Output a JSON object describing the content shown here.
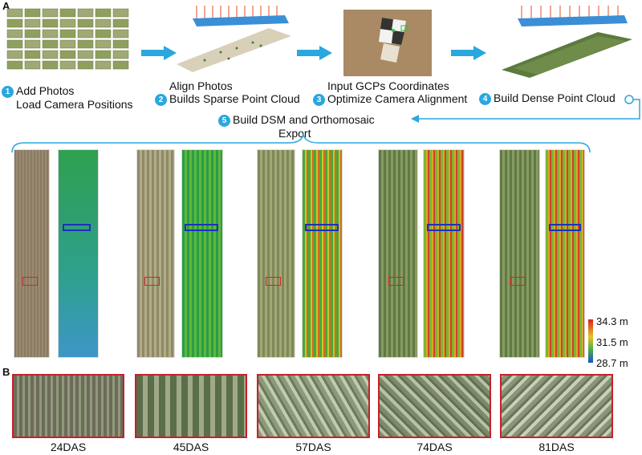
{
  "panels": {
    "a": "A",
    "b": "B"
  },
  "steps": [
    {
      "num": "1",
      "line1": "Add Photos",
      "line2": "Load Camera Positions"
    },
    {
      "num": "2",
      "line1": "Align Photos",
      "line2": "Builds Sparse Point Cloud"
    },
    {
      "num": "3",
      "line1": "Input GCPs Coordinates",
      "line2": "Optimize Camera Alignment"
    },
    {
      "num": "4",
      "line1": "Build Dense Point Cloud",
      "line2": ""
    },
    {
      "num": "5",
      "line1": "Build DSM and Orthomosaic",
      "line2": "Export"
    }
  ],
  "legend": {
    "max": "34.3 m",
    "mid": "31.5 m",
    "min": "28.7 m"
  },
  "dates": [
    "24DAS",
    "45DAS",
    "57DAS",
    "74DAS",
    "81DAS"
  ],
  "colors": {
    "accent": "#2aa7de",
    "roi_red": "#e02020",
    "roi_blue": "#1c2fbf",
    "frame": "#c8202a"
  }
}
